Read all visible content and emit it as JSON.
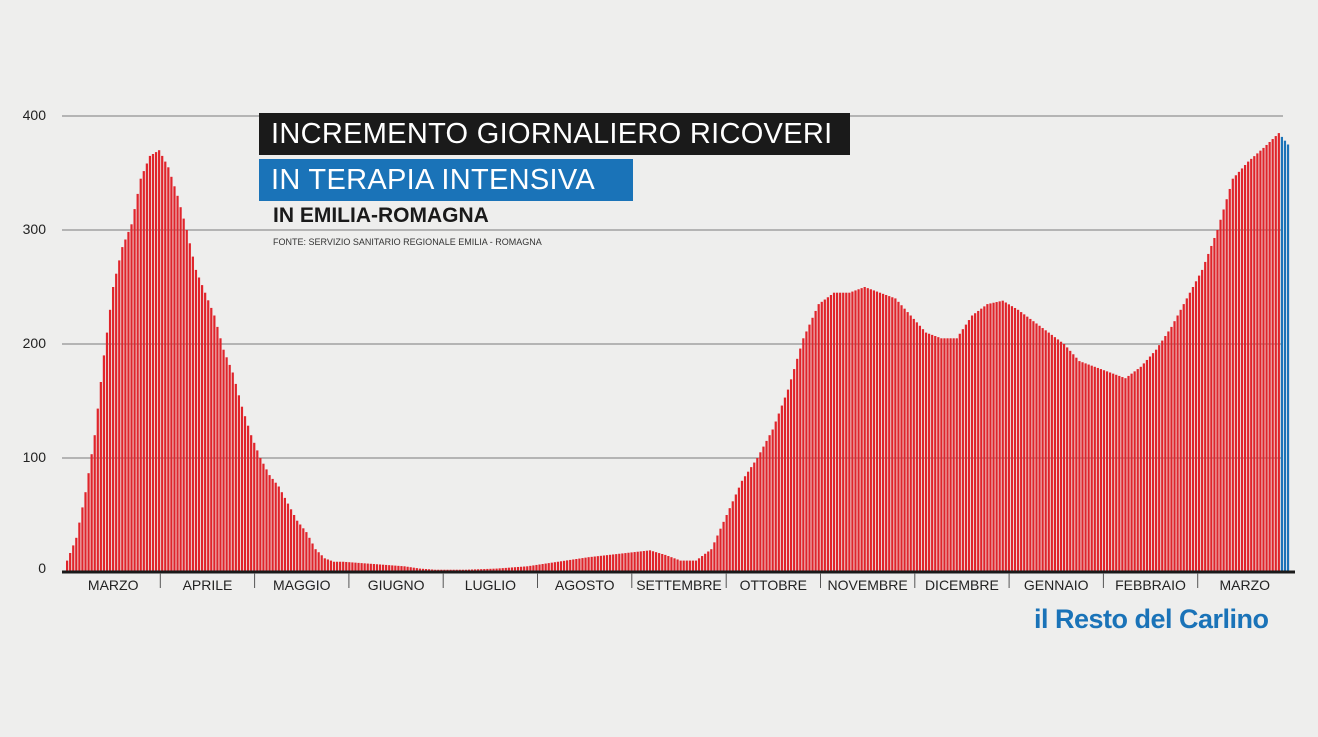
{
  "colors": {
    "bar": "#e0242b",
    "highlight": "#1a73b8",
    "title_bg": "#1a1a1a",
    "grid": "#555555",
    "axis": "#1a1a1a"
  },
  "header": {
    "title_line1": "INCREMENTO GIORNALIERO RICOVERI",
    "title_line2": "IN TERAPIA INTENSIVA",
    "subtitle": "IN EMILIA-ROMAGNA",
    "source": "FONTE: SERVIZIO SANITARIO REGIONALE EMILIA - ROMAGNA"
  },
  "brand": {
    "logo_text": "il Resto del Carlino"
  },
  "chart_data": {
    "type": "bar",
    "title": "INCREMENTO GIORNALIERO RICOVERI IN TERAPIA INTENSIVA",
    "subtitle": "IN EMILIA-ROMAGNA",
    "xlabel": "",
    "ylabel": "",
    "ylim": [
      0,
      400
    ],
    "yticks": [
      0,
      100,
      200,
      300,
      400
    ],
    "grid": true,
    "months": [
      "MARZO",
      "APRILE",
      "MAGGIO",
      "GIUGNO",
      "LUGLIO",
      "AGOSTO",
      "SETTEMBRE",
      "OTTOBRE",
      "NOVEMBRE",
      "DICEMBRE",
      "GENNAIO",
      "FEBBRAIO",
      "MARZO"
    ],
    "profile_days": [
      0,
      3,
      6,
      9,
      12,
      15,
      18,
      21,
      24,
      27,
      30,
      33,
      36,
      39,
      42,
      45,
      48,
      51,
      54,
      57,
      60,
      63,
      66,
      69,
      72,
      75,
      78,
      81,
      84,
      87,
      90,
      95,
      100,
      105,
      110,
      115,
      120,
      130,
      140,
      150,
      160,
      170,
      180,
      190,
      195,
      200,
      205,
      210,
      215,
      220,
      225,
      230,
      235,
      240,
      245,
      250,
      255,
      260,
      265,
      270,
      275,
      280,
      285,
      290,
      295,
      300,
      305,
      310,
      315,
      320,
      325,
      330,
      335,
      340,
      345,
      350,
      355,
      360,
      365,
      370,
      375,
      380,
      385,
      390,
      395,
      398
    ],
    "profile_values": [
      10,
      30,
      70,
      120,
      190,
      250,
      285,
      305,
      345,
      365,
      370,
      355,
      330,
      300,
      265,
      245,
      225,
      195,
      175,
      145,
      120,
      100,
      85,
      75,
      60,
      45,
      35,
      20,
      12,
      9,
      9,
      8,
      7,
      6,
      5,
      3,
      2,
      2,
      3,
      5,
      9,
      13,
      16,
      19,
      15,
      10,
      10,
      20,
      50,
      80,
      100,
      125,
      160,
      205,
      235,
      245,
      245,
      250,
      245,
      240,
      225,
      210,
      205,
      205,
      225,
      235,
      238,
      230,
      220,
      210,
      200,
      185,
      180,
      175,
      170,
      180,
      195,
      215,
      240,
      265,
      300,
      345,
      360,
      372,
      385,
      375
    ],
    "highlight_last_n": 3
  }
}
